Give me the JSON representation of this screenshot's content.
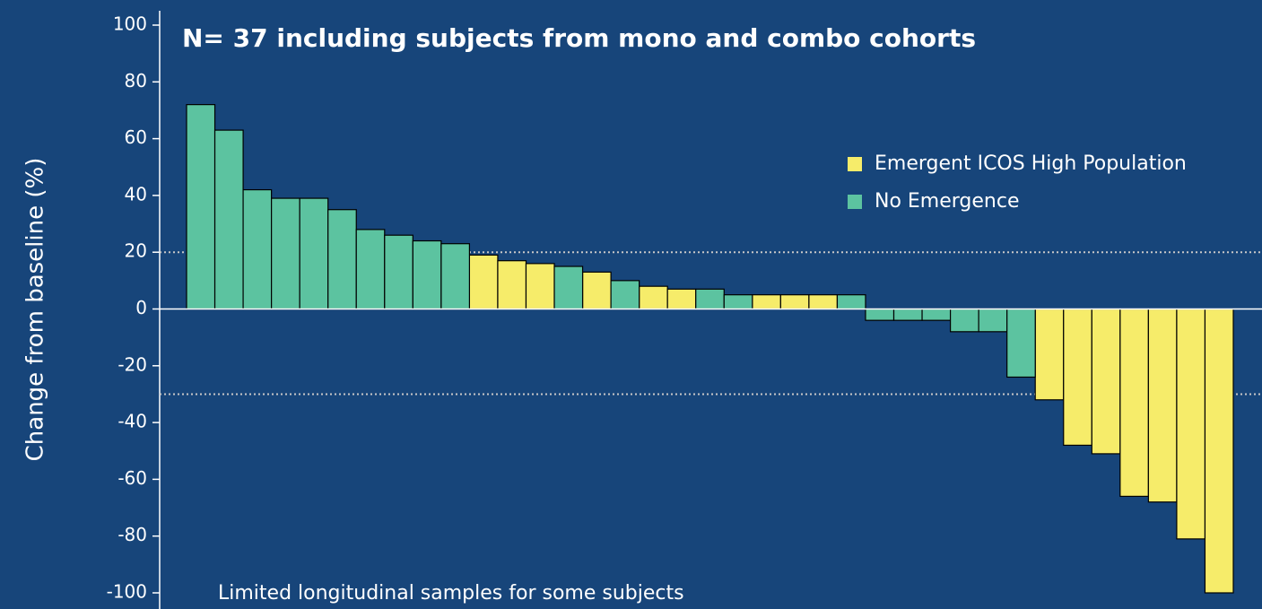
{
  "chart_data": {
    "type": "bar",
    "title": "N= 37 including subjects from mono and combo cohorts",
    "y_label": "Change from baseline (%)",
    "annotation": "Limited longitudinal samples for some subjects",
    "ylim": [
      -100,
      100
    ],
    "yticks": [
      -100,
      -80,
      -60,
      -40,
      -20,
      0,
      20,
      40,
      60,
      80,
      100
    ],
    "reference_lines": [
      20,
      -30
    ],
    "legend": "upper right",
    "series": [
      {
        "name": "Emergent ICOS High Population",
        "color": "#f6ec6a",
        "values": [
          null,
          null,
          null,
          null,
          null,
          null,
          null,
          null,
          null,
          null,
          19,
          17,
          16,
          null,
          13,
          null,
          8,
          7,
          null,
          null,
          5,
          5,
          5,
          null,
          null,
          null,
          null,
          null,
          null,
          null,
          -32,
          -48,
          -51,
          -66,
          -68,
          -81,
          -100
        ]
      },
      {
        "name": "No Emergence",
        "color": "#5cc3a0",
        "values": [
          72,
          63,
          42,
          39,
          39,
          35,
          28,
          26,
          24,
          23,
          null,
          null,
          null,
          15,
          null,
          10,
          null,
          null,
          7,
          5,
          null,
          null,
          null,
          5,
          -4,
          -4,
          -4,
          -8,
          -8,
          -24,
          null,
          null,
          null,
          null,
          null,
          null,
          null
        ]
      }
    ]
  }
}
